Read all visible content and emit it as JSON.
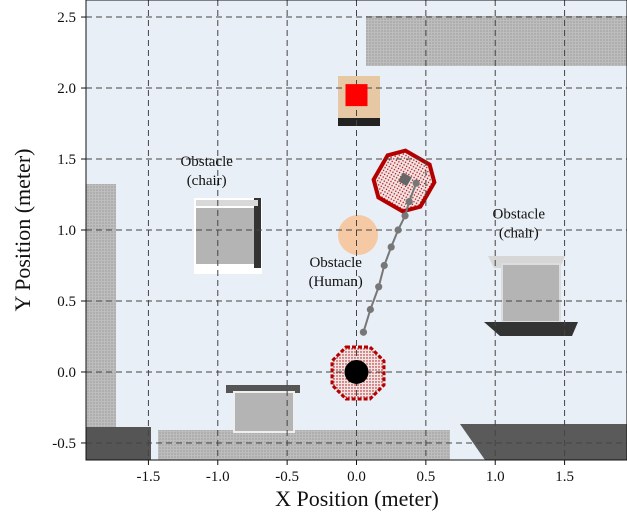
{
  "chart_data": {
    "type": "scatter",
    "title": "",
    "xlabel": "X Position (meter)",
    "ylabel": "Y Position (meter)",
    "xlim": [
      -1.95,
      1.95
    ],
    "ylim": [
      -0.62,
      2.62
    ],
    "xticks": [
      -1.5,
      -1.0,
      -0.5,
      0.0,
      0.5,
      1.0,
      1.5
    ],
    "xtick_labels": [
      "-1.5",
      "-1.0",
      "-0.5",
      "0.0",
      "0.5",
      "1.0",
      "1.5"
    ],
    "yticks": [
      -0.5,
      0.0,
      0.5,
      1.0,
      1.5,
      2.0,
      2.5
    ],
    "ytick_labels": [
      "-0.5",
      "0.0",
      "0.5",
      "1.0",
      "1.5",
      "2.0",
      "2.5"
    ],
    "grid": true,
    "series": [
      {
        "name": "",
        "x": [
          0.05,
          0.1,
          0.16,
          0.2,
          0.25,
          0.3,
          0.35,
          0.38,
          0.43
        ],
        "y": [
          0.28,
          0.44,
          0.6,
          0.75,
          0.88,
          1.0,
          1.1,
          1.2,
          1.33
        ]
      }
    ],
    "markers": [
      {
        "name": "robot-start",
        "x": 0.0,
        "y": 0.0,
        "color": "#000000"
      },
      {
        "name": "goal",
        "x": 0.0,
        "y": 1.95,
        "color": "#ff0000"
      },
      {
        "name": "human",
        "x": 0.0,
        "y": 1.0,
        "color": "#f5c9a3"
      }
    ],
    "annotations": [
      {
        "lines": [
          "Obstacle",
          "(chair)"
        ],
        "x": -1.08,
        "y": 1.45
      },
      {
        "lines": [
          "Obstacle",
          "(chair)"
        ],
        "x": 1.17,
        "y": 1.08
      },
      {
        "lines": [
          "Obstacle",
          "(Human)"
        ],
        "x": -0.15,
        "y": 0.74
      }
    ]
  }
}
